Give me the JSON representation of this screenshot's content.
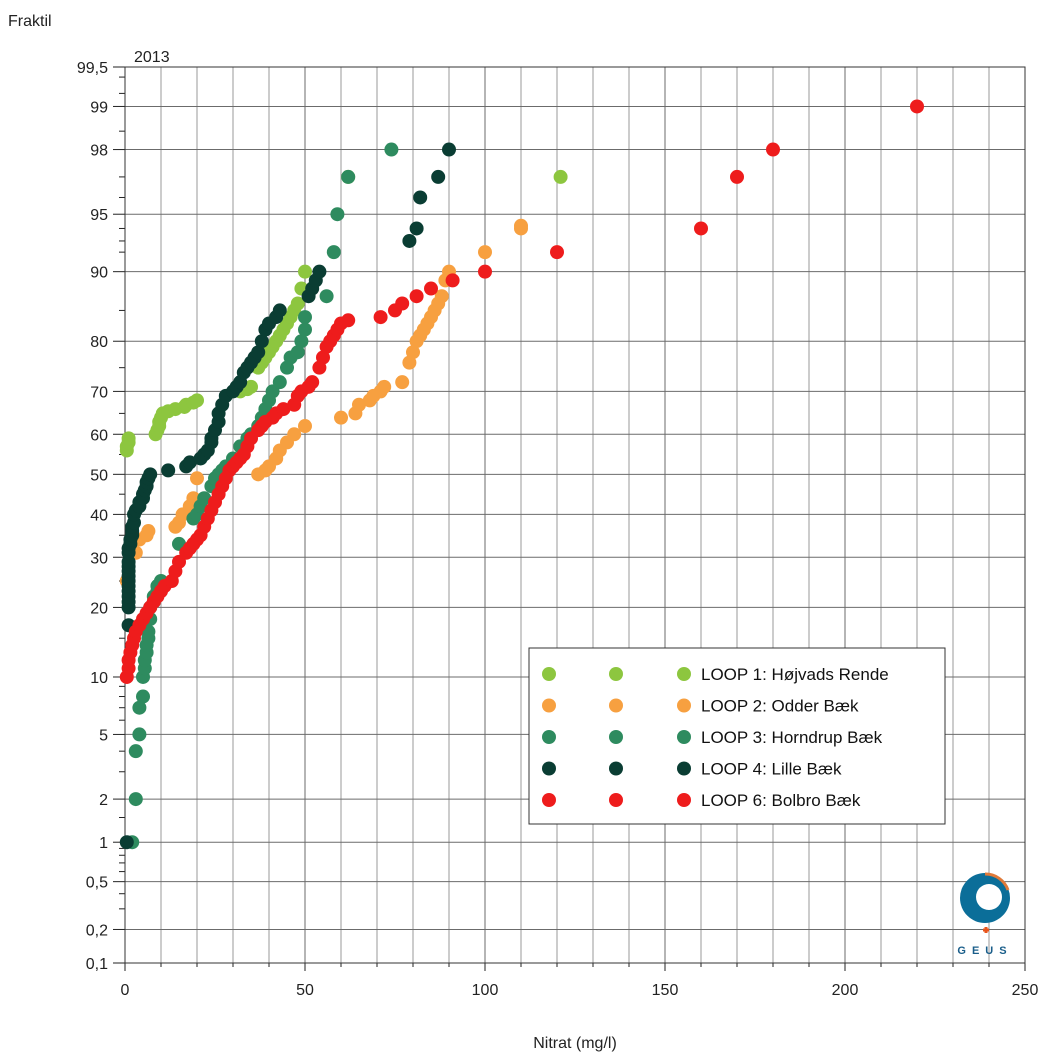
{
  "chart_data": {
    "type": "scatter",
    "title": "2013",
    "xlabel": "Nitrat (mg/l)",
    "ylabel": "Fraktil",
    "y_scale": "probability",
    "xlim": [
      0,
      250
    ],
    "ylim": [
      0.1,
      99.5
    ],
    "x_ticks": [
      0,
      50,
      100,
      150,
      200,
      250
    ],
    "x_tick_labels": [
      "0",
      "50",
      "100",
      "150",
      "200",
      "250"
    ],
    "x_grid_step": 10,
    "y_ticks": [
      0.1,
      0.2,
      0.5,
      1,
      2,
      5,
      10,
      20,
      30,
      40,
      50,
      60,
      70,
      80,
      90,
      95,
      98,
      99,
      99.5
    ],
    "y_tick_labels": [
      "0,1",
      "0,2",
      "0,5",
      "1",
      "2",
      "5",
      "10",
      "20",
      "30",
      "40",
      "50",
      "60",
      "70",
      "80",
      "90",
      "95",
      "98",
      "99",
      "99,5"
    ],
    "y_minor_ticks": [
      0.3,
      0.4,
      0.6,
      0.7,
      0.8,
      0.9,
      1.5,
      3,
      4,
      6,
      7,
      8,
      9,
      15,
      25,
      35,
      45,
      55,
      65,
      75,
      85,
      92,
      93,
      94,
      96,
      97,
      98.5,
      99.2,
      99.4
    ],
    "grid": true,
    "legend_position": "bottom-right",
    "series": [
      {
        "name": "LOOP 1: Højvads Rende",
        "color": "#8dc63f",
        "points": [
          [
            0.5,
            56
          ],
          [
            0.5,
            57
          ],
          [
            1,
            58
          ],
          [
            1,
            59
          ],
          [
            8.5,
            60
          ],
          [
            9,
            61
          ],
          [
            9.5,
            62
          ],
          [
            9.5,
            63
          ],
          [
            10,
            64
          ],
          [
            10.5,
            65
          ],
          [
            12,
            65.5
          ],
          [
            14,
            66
          ],
          [
            16.5,
            66.5
          ],
          [
            17,
            67
          ],
          [
            19,
            67.5
          ],
          [
            20,
            68
          ],
          [
            32,
            70
          ],
          [
            34,
            70.5
          ],
          [
            35,
            71
          ],
          [
            37,
            75
          ],
          [
            38,
            76
          ],
          [
            39,
            77
          ],
          [
            40,
            78
          ],
          [
            41,
            79
          ],
          [
            42,
            80
          ],
          [
            43,
            81
          ],
          [
            44,
            82
          ],
          [
            45,
            83
          ],
          [
            46,
            84
          ],
          [
            47,
            85
          ],
          [
            48,
            86
          ],
          [
            49,
            88
          ],
          [
            50,
            90
          ],
          [
            62,
            97
          ],
          [
            121,
            97
          ]
        ]
      },
      {
        "name": "LOOP 2: Odder Bæk",
        "color": "#f7a040",
        "points": [
          [
            0.5,
            25
          ],
          [
            3,
            31
          ],
          [
            4,
            34
          ],
          [
            6,
            35
          ],
          [
            6.5,
            36
          ],
          [
            14,
            37
          ],
          [
            15,
            38
          ],
          [
            16,
            40
          ],
          [
            18,
            42
          ],
          [
            19,
            44
          ],
          [
            20,
            49
          ],
          [
            37,
            50
          ],
          [
            39,
            51
          ],
          [
            40,
            52
          ],
          [
            42,
            54
          ],
          [
            43,
            56
          ],
          [
            45,
            58
          ],
          [
            47,
            60
          ],
          [
            50,
            62
          ],
          [
            60,
            64
          ],
          [
            64,
            65
          ],
          [
            65,
            67
          ],
          [
            68,
            68
          ],
          [
            69,
            69
          ],
          [
            71,
            70
          ],
          [
            72,
            71
          ],
          [
            77,
            72
          ],
          [
            79,
            76
          ],
          [
            80,
            78
          ],
          [
            81,
            80
          ],
          [
            82,
            81
          ],
          [
            83,
            82
          ],
          [
            84,
            83
          ],
          [
            85,
            84
          ],
          [
            86,
            85
          ],
          [
            87,
            86
          ],
          [
            88,
            87
          ],
          [
            89,
            89
          ],
          [
            90,
            90
          ],
          [
            100,
            92
          ],
          [
            110,
            94
          ],
          [
            110,
            94.2
          ]
        ]
      },
      {
        "name": "LOOP 3: Horndrup Bæk",
        "color": "#2e8b5f",
        "points": [
          [
            2,
            1
          ],
          [
            3,
            2
          ],
          [
            3,
            4
          ],
          [
            4,
            5
          ],
          [
            4,
            7
          ],
          [
            5,
            8
          ],
          [
            5,
            10
          ],
          [
            5.5,
            11
          ],
          [
            5.5,
            12
          ],
          [
            6,
            13
          ],
          [
            6,
            14
          ],
          [
            6.5,
            15
          ],
          [
            6.5,
            16
          ],
          [
            7,
            18
          ],
          [
            7,
            20
          ],
          [
            8,
            21
          ],
          [
            8,
            22
          ],
          [
            9,
            23
          ],
          [
            9,
            24
          ],
          [
            10,
            25
          ],
          [
            15,
            33
          ],
          [
            19,
            39
          ],
          [
            20,
            40
          ],
          [
            21,
            42
          ],
          [
            22,
            44
          ],
          [
            24,
            47
          ],
          [
            25,
            49
          ],
          [
            26,
            50
          ],
          [
            27,
            51
          ],
          [
            28,
            52
          ],
          [
            30,
            54
          ],
          [
            32,
            57
          ],
          [
            34,
            59
          ],
          [
            35,
            60
          ],
          [
            37,
            62
          ],
          [
            38,
            64
          ],
          [
            39,
            66
          ],
          [
            40,
            68
          ],
          [
            41,
            70
          ],
          [
            43,
            72
          ],
          [
            45,
            75
          ],
          [
            46,
            77
          ],
          [
            48,
            78
          ],
          [
            49,
            80
          ],
          [
            50,
            82
          ],
          [
            50,
            84
          ],
          [
            56,
            87
          ],
          [
            58,
            92
          ],
          [
            59,
            95
          ],
          [
            62,
            97
          ],
          [
            74,
            98
          ]
        ]
      },
      {
        "name": "LOOP 4: Lille Bæk",
        "color": "#0a3d33",
        "points": [
          [
            0.5,
            1
          ],
          [
            1,
            17
          ],
          [
            1,
            20
          ],
          [
            1,
            21
          ],
          [
            1,
            22
          ],
          [
            1,
            23
          ],
          [
            1,
            24
          ],
          [
            1,
            25
          ],
          [
            1,
            26
          ],
          [
            1,
            27
          ],
          [
            1,
            28
          ],
          [
            1,
            29
          ],
          [
            1,
            31
          ],
          [
            1,
            32
          ],
          [
            1.5,
            33
          ],
          [
            1.5,
            34
          ],
          [
            2,
            35
          ],
          [
            2,
            36
          ],
          [
            2,
            37
          ],
          [
            2.5,
            38
          ],
          [
            2.5,
            40
          ],
          [
            3,
            41
          ],
          [
            4,
            42
          ],
          [
            4,
            43
          ],
          [
            5,
            44
          ],
          [
            5,
            45
          ],
          [
            5.5,
            46
          ],
          [
            6,
            47
          ],
          [
            6,
            48
          ],
          [
            6.5,
            49
          ],
          [
            7,
            50
          ],
          [
            12,
            51
          ],
          [
            17,
            52
          ],
          [
            18,
            53
          ],
          [
            21,
            54
          ],
          [
            22,
            55
          ],
          [
            23,
            56
          ],
          [
            24,
            58
          ],
          [
            24,
            59
          ],
          [
            25,
            61
          ],
          [
            26,
            63
          ],
          [
            26,
            65
          ],
          [
            27,
            67
          ],
          [
            28,
            69
          ],
          [
            30,
            70
          ],
          [
            31,
            71
          ],
          [
            32,
            72
          ],
          [
            33,
            74
          ],
          [
            34,
            75
          ],
          [
            35,
            76
          ],
          [
            36,
            77
          ],
          [
            37,
            78
          ],
          [
            38,
            80
          ],
          [
            39,
            82
          ],
          [
            40,
            83
          ],
          [
            42,
            84
          ],
          [
            43,
            85
          ],
          [
            51,
            87
          ],
          [
            52,
            88
          ],
          [
            53,
            89
          ],
          [
            54,
            90
          ],
          [
            79,
            93
          ],
          [
            81,
            94
          ],
          [
            82,
            96
          ],
          [
            87,
            97
          ],
          [
            90,
            98
          ]
        ]
      },
      {
        "name": "LOOP 6: Bolbro Bæk",
        "color": "#ee1c1c",
        "points": [
          [
            0.5,
            10
          ],
          [
            1,
            11
          ],
          [
            1,
            12
          ],
          [
            1.5,
            13
          ],
          [
            2,
            14
          ],
          [
            2.5,
            15
          ],
          [
            3,
            16
          ],
          [
            4,
            17
          ],
          [
            5,
            18
          ],
          [
            6,
            19
          ],
          [
            7,
            20
          ],
          [
            8,
            21
          ],
          [
            9,
            22
          ],
          [
            10,
            23
          ],
          [
            11,
            24
          ],
          [
            13,
            25
          ],
          [
            14,
            27
          ],
          [
            15,
            29
          ],
          [
            17,
            31
          ],
          [
            18,
            32
          ],
          [
            19,
            33
          ],
          [
            20,
            34
          ],
          [
            21,
            35
          ],
          [
            22,
            37
          ],
          [
            23,
            39
          ],
          [
            24,
            41
          ],
          [
            25,
            43
          ],
          [
            26,
            45
          ],
          [
            27,
            47
          ],
          [
            28,
            49
          ],
          [
            29,
            51
          ],
          [
            30,
            52
          ],
          [
            31,
            53
          ],
          [
            32,
            54
          ],
          [
            33,
            55
          ],
          [
            34,
            57
          ],
          [
            35,
            59
          ],
          [
            37,
            61
          ],
          [
            38,
            62
          ],
          [
            39,
            63
          ],
          [
            41,
            64
          ],
          [
            42,
            65
          ],
          [
            44,
            66
          ],
          [
            47,
            67
          ],
          [
            48,
            69
          ],
          [
            49,
            70
          ],
          [
            51,
            71
          ],
          [
            52,
            72
          ],
          [
            54,
            75
          ],
          [
            55,
            77
          ],
          [
            56,
            79
          ],
          [
            57,
            80
          ],
          [
            58,
            81
          ],
          [
            59,
            82
          ],
          [
            60,
            83
          ],
          [
            62,
            83.5
          ],
          [
            71,
            84
          ],
          [
            75,
            85
          ],
          [
            77,
            86
          ],
          [
            81,
            87
          ],
          [
            85,
            88
          ],
          [
            91,
            89
          ],
          [
            100,
            90
          ],
          [
            120,
            92
          ],
          [
            160,
            94
          ],
          [
            170,
            97
          ],
          [
            180,
            98
          ],
          [
            220,
            99
          ]
        ]
      }
    ]
  }
}
